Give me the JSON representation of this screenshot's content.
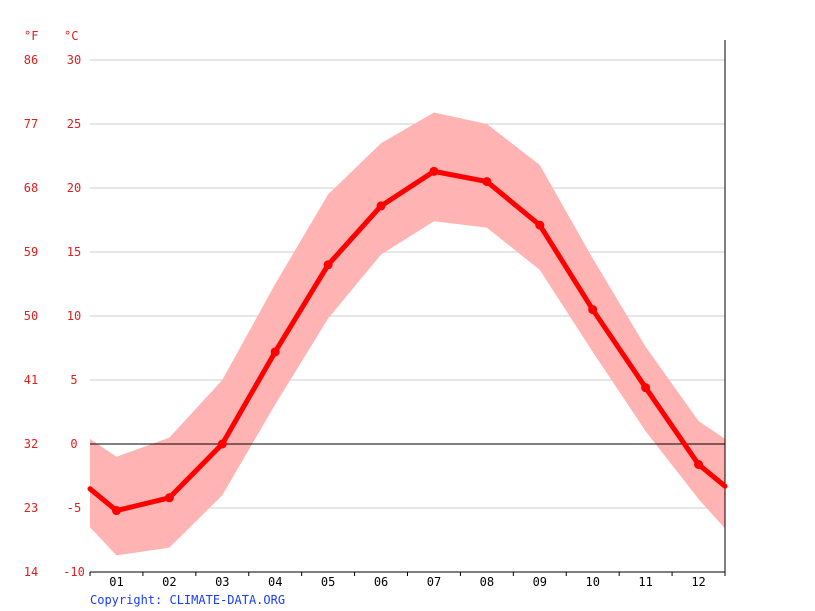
{
  "chart_data": {
    "type": "line",
    "units": {
      "fahrenheit": "°F",
      "celsius": "°C"
    },
    "categories": [
      "01",
      "02",
      "03",
      "04",
      "05",
      "06",
      "07",
      "08",
      "09",
      "10",
      "11",
      "12"
    ],
    "y_ticks_celsius": [
      -10,
      -5,
      0,
      5,
      10,
      15,
      20,
      25,
      30
    ],
    "y_ticks_fahrenheit": [
      14,
      23,
      32,
      41,
      50,
      59,
      68,
      77,
      86
    ],
    "ylim": [
      -10,
      32
    ],
    "grid": true,
    "series": [
      {
        "values": [
          -5.2,
          -4.2,
          0.0,
          7.2,
          14.0,
          18.6,
          21.3,
          20.5,
          17.1,
          10.5,
          4.4,
          -1.6
        ]
      }
    ],
    "range_band": {
      "edge_start": {
        "lower": -6.5,
        "upper": 0.4
      },
      "upper": [
        -1.0,
        0.5,
        5.0,
        12.5,
        19.5,
        23.5,
        25.9,
        25.0,
        21.8,
        14.5,
        7.6,
        1.8
      ],
      "lower": [
        -8.7,
        -8.1,
        -4.0,
        3.1,
        9.8,
        14.8,
        17.4,
        16.9,
        13.6,
        7.2,
        1.0,
        -4.3
      ],
      "edge_end": {
        "lower": -6.6,
        "upper": 0.4
      }
    },
    "line_edge_start": -3.5,
    "line_edge_end": -3.3,
    "colors": {
      "line": "#ff0000",
      "band": "#ffb3b3",
      "grid": "#cccccc",
      "zero_line": "#000000",
      "axis": "#000000",
      "tick_label": "#e02020"
    }
  },
  "copyright": "Copyright: CLIMATE-DATA.ORG"
}
